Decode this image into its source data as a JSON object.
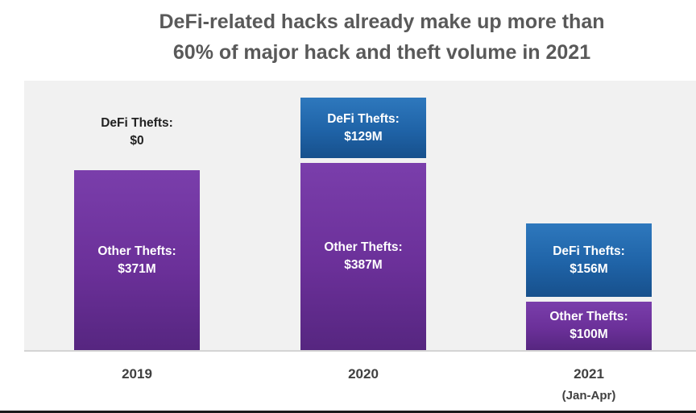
{
  "chart_data": {
    "type": "bar",
    "stacked": true,
    "title_lines": [
      "DeFi-related hacks already make up more than",
      "60% of major hack and theft volume in 2021"
    ],
    "categories": [
      "2019",
      "2020",
      "2021"
    ],
    "category_sublabels": [
      "",
      "",
      "(Jan-Apr)"
    ],
    "series": [
      {
        "name": "Other Thefts",
        "values": [
          371,
          387,
          100
        ],
        "labels": [
          [
            "Other Thefts:",
            "$371M"
          ],
          [
            "Other Thefts:",
            "$387M"
          ],
          [
            "Other Thefts:",
            "$100M"
          ]
        ],
        "color": "#6b3099"
      },
      {
        "name": "DeFi Thefts",
        "values": [
          0,
          129,
          156
        ],
        "labels": [
          [
            "DeFi Thefts:",
            "$0"
          ],
          [
            "DeFi Thefts:",
            "$129M"
          ],
          [
            "DeFi Thefts:",
            "$156M"
          ]
        ],
        "color": "#1f63a7"
      }
    ],
    "unit": "$M",
    "ylim": [
      0,
      560
    ],
    "grid": false,
    "legend": "none"
  }
}
